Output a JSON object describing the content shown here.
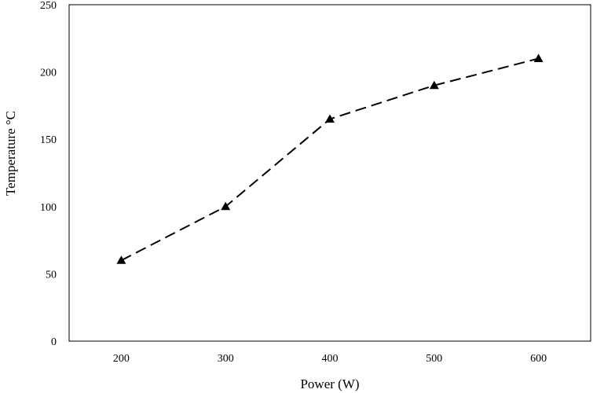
{
  "chart_data": {
    "type": "line",
    "title": "",
    "xlabel": "Power (W)",
    "ylabel": "Temperature  °C",
    "x": [
      200,
      300,
      400,
      500,
      600
    ],
    "series": [
      {
        "values": [
          60,
          100,
          165,
          190,
          210
        ],
        "marker": "triangle",
        "line_style": "dashed",
        "color": "#000000"
      }
    ],
    "x_ticks": [
      "200",
      "300",
      "400",
      "500",
      "600"
    ],
    "y_ticks": [
      "0",
      "50",
      "100",
      "150",
      "200",
      "250"
    ],
    "x_tick_values": [
      200,
      300,
      400,
      500,
      600
    ],
    "y_tick_values": [
      0,
      50,
      100,
      150,
      200,
      250
    ],
    "xlim": [
      150,
      650
    ],
    "ylim": [
      0,
      250
    ],
    "grid": false,
    "legend": "none"
  }
}
